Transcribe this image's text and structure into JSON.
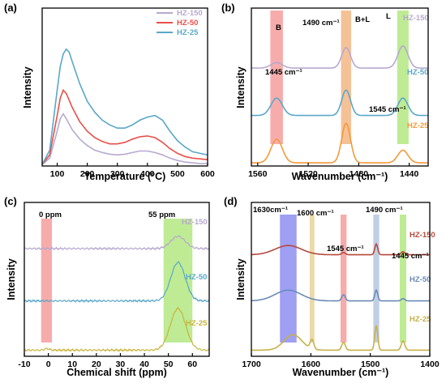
{
  "chart_data": [
    {
      "panel": "(a)",
      "type": "line",
      "xlabel": "Temperature (°C)",
      "ylabel": "Intensity",
      "xlim": [
        50,
        600
      ],
      "xticks": [
        "100",
        "200",
        "300",
        "400",
        "500",
        "600"
      ],
      "legend": {
        "placement": "top-right"
      },
      "series": [
        {
          "name": "HZ-150",
          "color": "#b7a9cf",
          "x": [
            50,
            75,
            100,
            110,
            120,
            130,
            150,
            175,
            200,
            225,
            250,
            275,
            300,
            325,
            350,
            375,
            400,
            425,
            450,
            475,
            500,
            525,
            550,
            575,
            600
          ],
          "y": [
            0.01,
            0.05,
            0.22,
            0.3,
            0.33,
            0.3,
            0.23,
            0.17,
            0.13,
            0.1,
            0.085,
            0.075,
            0.07,
            0.075,
            0.085,
            0.095,
            0.095,
            0.085,
            0.07,
            0.05,
            0.035,
            0.025,
            0.02,
            0.015,
            0.015
          ]
        },
        {
          "name": "HZ-50",
          "color": "#e8504a",
          "x": [
            50,
            75,
            100,
            110,
            120,
            130,
            150,
            175,
            200,
            225,
            250,
            275,
            300,
            325,
            350,
            375,
            400,
            425,
            450,
            475,
            500,
            525,
            550,
            575,
            600
          ],
          "y": [
            0.01,
            0.07,
            0.32,
            0.43,
            0.48,
            0.46,
            0.37,
            0.28,
            0.22,
            0.18,
            0.155,
            0.14,
            0.14,
            0.15,
            0.17,
            0.185,
            0.19,
            0.18,
            0.15,
            0.11,
            0.08,
            0.06,
            0.05,
            0.045,
            0.04
          ]
        },
        {
          "name": "HZ-25",
          "color": "#5aa8c8",
          "x": [
            50,
            75,
            100,
            110,
            120,
            130,
            140,
            150,
            175,
            200,
            225,
            250,
            275,
            300,
            325,
            350,
            375,
            400,
            425,
            450,
            475,
            500,
            525,
            550,
            575,
            600
          ],
          "y": [
            0.01,
            0.1,
            0.48,
            0.63,
            0.71,
            0.74,
            0.72,
            0.66,
            0.52,
            0.41,
            0.34,
            0.29,
            0.26,
            0.24,
            0.24,
            0.26,
            0.29,
            0.31,
            0.32,
            0.29,
            0.22,
            0.16,
            0.12,
            0.09,
            0.08,
            0.07
          ]
        }
      ]
    },
    {
      "panel": "(b)",
      "type": "line",
      "xlabel": "Wavenumber (cm⁻¹)",
      "ylabel": "Intensity",
      "xlim": [
        1565,
        1425
      ],
      "xticks": [
        "1560",
        "1520",
        "1480",
        "1440"
      ],
      "bands": [
        {
          "center": 1545,
          "width": 10,
          "color": "#f28080",
          "label": "B"
        },
        {
          "center": 1490,
          "width": 8,
          "color": "#f0a060",
          "label": "B+L"
        },
        {
          "center": 1445,
          "width": 9,
          "color": "#9be05a",
          "label": "L"
        }
      ],
      "annotations": [
        "1445 cm⁻¹",
        "1490 cm⁻¹",
        "1545 cm⁻¹",
        "B",
        "B+L",
        "L"
      ],
      "series": [
        {
          "name": "HZ-150",
          "color": "#b7a9cf",
          "offset": 0.62,
          "peaks": [
            [
              1545,
              0.035,
              4.5
            ],
            [
              1490,
              0.13,
              3.5
            ],
            [
              1445,
              0.14,
              4
            ]
          ]
        },
        {
          "name": "HZ-50",
          "color": "#5aa8c8",
          "offset": 0.32,
          "peaks": [
            [
              1545,
              0.11,
              4.5
            ],
            [
              1490,
              0.16,
              3.5
            ],
            [
              1445,
              0.11,
              4
            ]
          ]
        },
        {
          "name": "HZ-25",
          "color": "#f39a3b",
          "offset": 0.02,
          "peaks": [
            [
              1545,
              0.15,
              4.5
            ],
            [
              1490,
              0.25,
              3.5
            ],
            [
              1445,
              0.08,
              4
            ]
          ]
        }
      ]
    },
    {
      "panel": "(c)",
      "type": "line",
      "xlabel": "Chemical shift (ppm)",
      "ylabel": "Intensity",
      "xlim": [
        -10,
        67
      ],
      "xticks": [
        "-10",
        "0",
        "10",
        "20",
        "30",
        "40",
        "50",
        "60"
      ],
      "bands": [
        {
          "from": -3,
          "to": 1.5,
          "color": "#f28080",
          "label": "0 ppm"
        },
        {
          "from": 48,
          "to": 60,
          "color": "#9be05a",
          "label": "55 ppm"
        }
      ],
      "annotations": [
        "0 ppm",
        "55 ppm"
      ],
      "series": [
        {
          "name": "HZ-150",
          "color": "#b7a9cf",
          "offset": 0.7,
          "peaks": [
            [
              54,
              0.08,
              3
            ]
          ]
        },
        {
          "name": "HZ-50",
          "color": "#5aa8c8",
          "offset": 0.36,
          "peaks": [
            [
              54,
              0.25,
              3
            ]
          ]
        },
        {
          "name": "HZ-25",
          "color": "#c9b43c",
          "offset": 0.04,
          "peaks": [
            [
              -0.5,
              0.01,
              1
            ],
            [
              54,
              0.27,
              3.2
            ]
          ]
        }
      ]
    },
    {
      "panel": "(d)",
      "type": "line",
      "xlabel": "Wavenumber (cm⁻¹)",
      "ylabel": "Intensity",
      "xlim": [
        1700,
        1400
      ],
      "xticks": [
        "1700",
        "1600",
        "1500",
        "1400"
      ],
      "bands": [
        {
          "center": 1638,
          "width": 28,
          "color": "#6b6bee",
          "label": "1630cm⁻¹"
        },
        {
          "center": 1598,
          "width": 8,
          "color": "#e0c47a",
          "label": "1600 cm⁻¹"
        },
        {
          "center": 1545,
          "width": 10,
          "color": "#f28080",
          "label": "1545 cm⁻¹"
        },
        {
          "center": 1490,
          "width": 10,
          "color": "#9fb6d6",
          "label": "1490 cm⁻¹"
        },
        {
          "center": 1445,
          "width": 11,
          "color": "#9be05a",
          "label": "1445 cm⁻¹"
        }
      ],
      "annotations": [
        "1630cm⁻¹",
        "1600 cm⁻¹",
        "1545 cm⁻¹",
        "1490 cm⁻¹",
        "1445 cm⁻¹"
      ],
      "series": [
        {
          "name": "HZ-150",
          "color": "#b5493c",
          "offset": 0.66,
          "peaks": [
            [
              1638,
              0.06,
              22
            ],
            [
              1545,
              0.015,
              3
            ],
            [
              1490,
              0.07,
              2.5
            ],
            [
              1445,
              0.02,
              3
            ]
          ]
        },
        {
          "name": "HZ-50",
          "color": "#6a8bb8",
          "offset": 0.36,
          "peaks": [
            [
              1638,
              0.07,
              22
            ],
            [
              1545,
              0.04,
              3
            ],
            [
              1490,
              0.07,
              2.5
            ],
            [
              1445,
              0.015,
              3
            ]
          ]
        },
        {
          "name": "HZ-25",
          "color": "#c7b04a",
          "offset": 0.04,
          "peaks": [
            [
              1630,
              0.1,
              15
            ],
            [
              1598,
              0.06,
              3
            ],
            [
              1545,
              0.05,
              3
            ],
            [
              1490,
              0.16,
              2.5
            ],
            [
              1445,
              0.06,
              3
            ]
          ]
        }
      ]
    }
  ]
}
